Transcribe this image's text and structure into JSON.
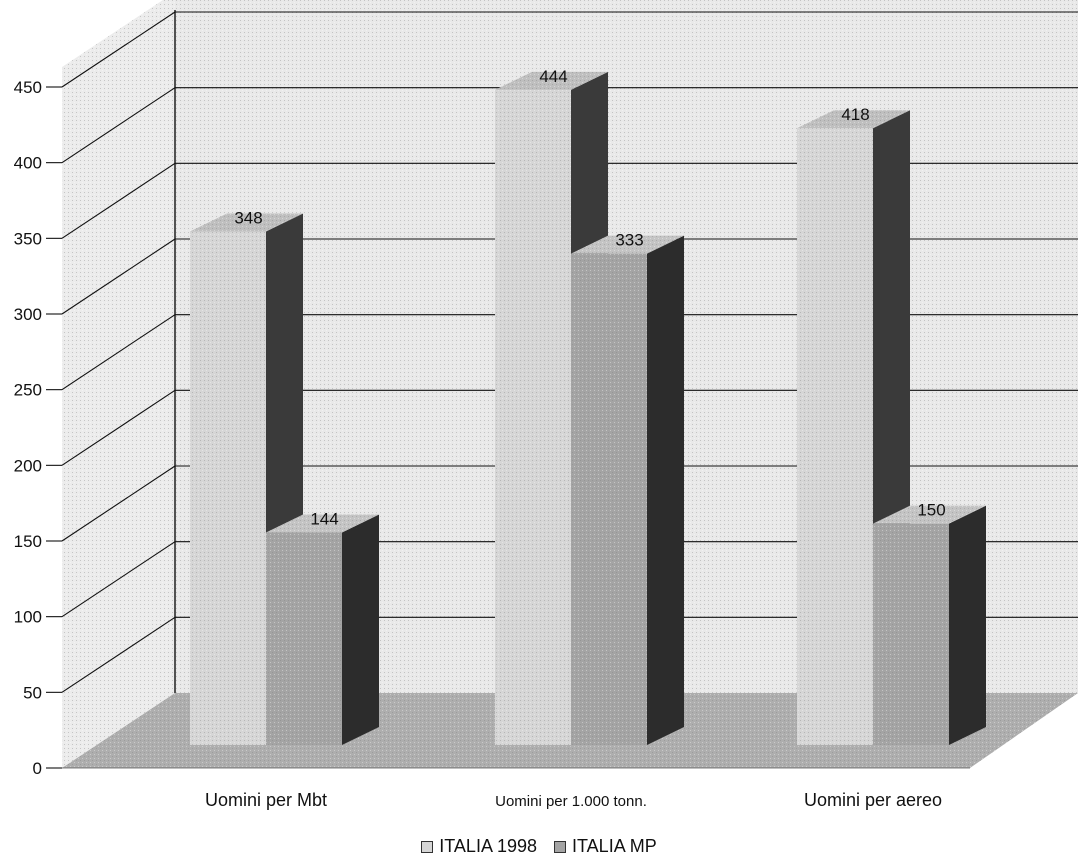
{
  "chart_data": {
    "type": "bar",
    "title": "",
    "xlabel": "",
    "ylabel": "",
    "categories": [
      "Uomini per Mbt",
      "Uomini per 1.000 tonn.",
      "Uomini per aereo"
    ],
    "series": [
      {
        "name": "ITALIA 1998",
        "values": [
          348,
          444,
          418
        ],
        "color": "#d6d6d6"
      },
      {
        "name": "ITALIA MP",
        "values": [
          144,
          333,
          150
        ],
        "color": "#a4a4a4"
      }
    ],
    "ylim": [
      0,
      450
    ],
    "yticks": [
      "0",
      "50",
      "100",
      "150",
      "200",
      "250",
      "300",
      "350",
      "400",
      "450"
    ],
    "grid": true,
    "legend_position": "bottom",
    "colors": {
      "wall": "#e9e9e9",
      "floor": "#aeaeae",
      "series1_front": "#d6d6d6",
      "series1_top": "#bfbfbf",
      "series1_side": "#3a3a3a",
      "series2_front": "#a4a4a4",
      "series2_top": "#c4c4c4",
      "series2_side": "#2c2c2c"
    }
  }
}
